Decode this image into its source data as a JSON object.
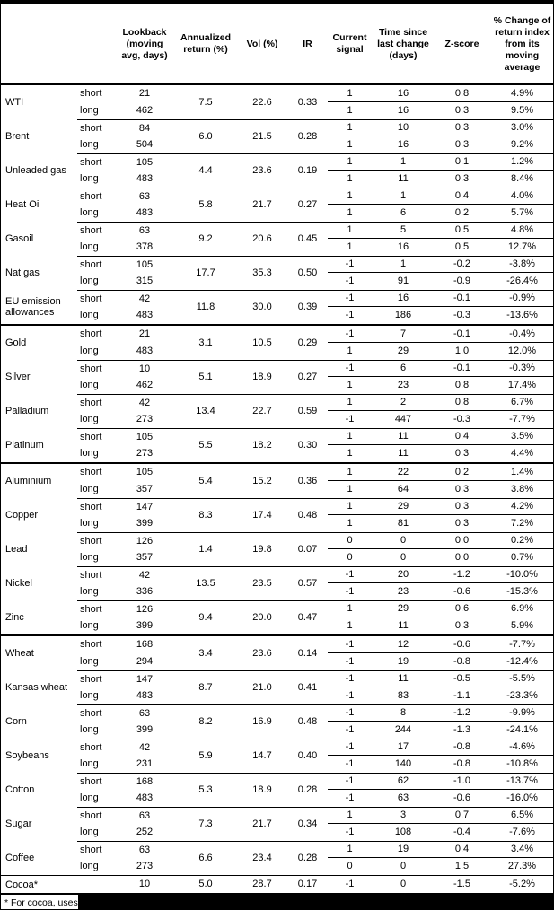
{
  "colors": {
    "background": "#ffffff",
    "line": "#000000",
    "redaction": "#000000"
  },
  "header": {
    "columns": [
      {
        "key": "lookback",
        "label": "Lookback\n(moving\navg, days)"
      },
      {
        "key": "annualized_return",
        "label": "Annualized\nreturn (%)"
      },
      {
        "key": "vol",
        "label": "Vol (%)"
      },
      {
        "key": "ir",
        "label": "IR"
      },
      {
        "key": "current_signal",
        "label": "Current\nsignal"
      },
      {
        "key": "time_since_change",
        "label": "Time since\nlast change\n(days)"
      },
      {
        "key": "zscore",
        "label": "Z-score"
      },
      {
        "key": "pct_change",
        "label": "% Change of\nreturn index\nfrom its\nmoving\naverage"
      }
    ]
  },
  "table": {
    "groups": [
      {
        "name": "WTI",
        "annualized_return": "7.5",
        "vol": "22.6",
        "ir": "0.33",
        "rows": [
          {
            "label": "short",
            "lookback": "21",
            "signal": "1",
            "time": "16",
            "zscore": "0.8",
            "pct": "4.9%"
          },
          {
            "label": "long",
            "lookback": "462",
            "signal": "1",
            "time": "16",
            "zscore": "0.3",
            "pct": "9.5%"
          }
        ]
      },
      {
        "name": "Brent",
        "annualized_return": "6.0",
        "vol": "21.5",
        "ir": "0.28",
        "rows": [
          {
            "label": "short",
            "lookback": "84",
            "signal": "1",
            "time": "10",
            "zscore": "0.3",
            "pct": "3.0%"
          },
          {
            "label": "long",
            "lookback": "504",
            "signal": "1",
            "time": "16",
            "zscore": "0.3",
            "pct": "9.2%"
          }
        ]
      },
      {
        "name": "Unleaded gas",
        "annualized_return": "4.4",
        "vol": "23.6",
        "ir": "0.19",
        "rows": [
          {
            "label": "short",
            "lookback": "105",
            "signal": "1",
            "time": "1",
            "zscore": "0.1",
            "pct": "1.2%"
          },
          {
            "label": "long",
            "lookback": "483",
            "signal": "1",
            "time": "11",
            "zscore": "0.3",
            "pct": "8.4%"
          }
        ]
      },
      {
        "name": "Heat Oil",
        "annualized_return": "5.8",
        "vol": "21.7",
        "ir": "0.27",
        "rows": [
          {
            "label": "short",
            "lookback": "63",
            "signal": "1",
            "time": "1",
            "zscore": "0.4",
            "pct": "4.0%"
          },
          {
            "label": "long",
            "lookback": "483",
            "signal": "1",
            "time": "6",
            "zscore": "0.2",
            "pct": "5.7%"
          }
        ]
      },
      {
        "name": "Gasoil",
        "annualized_return": "9.2",
        "vol": "20.6",
        "ir": "0.45",
        "rows": [
          {
            "label": "short",
            "lookback": "63",
            "signal": "1",
            "time": "5",
            "zscore": "0.5",
            "pct": "4.8%"
          },
          {
            "label": "long",
            "lookback": "378",
            "signal": "1",
            "time": "16",
            "zscore": "0.5",
            "pct": "12.7%"
          }
        ]
      },
      {
        "name": "Nat gas",
        "annualized_return": "17.7",
        "vol": "35.3",
        "ir": "0.50",
        "rows": [
          {
            "label": "short",
            "lookback": "105",
            "signal": "-1",
            "time": "1",
            "zscore": "-0.2",
            "pct": "-3.8%"
          },
          {
            "label": "long",
            "lookback": "315",
            "signal": "-1",
            "time": "91",
            "zscore": "-0.9",
            "pct": "-26.4%"
          }
        ]
      },
      {
        "name": "EU emission allowances",
        "annualized_return": "11.8",
        "vol": "30.0",
        "ir": "0.39",
        "rows": [
          {
            "label": "short",
            "lookback": "42",
            "signal": "-1",
            "time": "16",
            "zscore": "-0.1",
            "pct": "-0.9%"
          },
          {
            "label": "long",
            "lookback": "483",
            "signal": "-1",
            "time": "186",
            "zscore": "-0.3",
            "pct": "-13.6%"
          }
        ]
      },
      {
        "name": "Gold",
        "section_start": true,
        "annualized_return": "3.1",
        "vol": "10.5",
        "ir": "0.29",
        "rows": [
          {
            "label": "short",
            "lookback": "21",
            "signal": "-1",
            "time": "7",
            "zscore": "-0.1",
            "pct": "-0.4%"
          },
          {
            "label": "long",
            "lookback": "483",
            "signal": "1",
            "time": "29",
            "zscore": "1.0",
            "pct": "12.0%"
          }
        ]
      },
      {
        "name": "Silver",
        "annualized_return": "5.1",
        "vol": "18.9",
        "ir": "0.27",
        "rows": [
          {
            "label": "short",
            "lookback": "10",
            "signal": "-1",
            "time": "6",
            "zscore": "-0.1",
            "pct": "-0.3%"
          },
          {
            "label": "long",
            "lookback": "462",
            "signal": "1",
            "time": "23",
            "zscore": "0.8",
            "pct": "17.4%"
          }
        ]
      },
      {
        "name": "Palladium",
        "annualized_return": "13.4",
        "vol": "22.7",
        "ir": "0.59",
        "rows": [
          {
            "label": "short",
            "lookback": "42",
            "signal": "1",
            "time": "2",
            "zscore": "0.8",
            "pct": "6.7%"
          },
          {
            "label": "long",
            "lookback": "273",
            "signal": "-1",
            "time": "447",
            "zscore": "-0.3",
            "pct": "-7.7%"
          }
        ]
      },
      {
        "name": "Platinum",
        "annualized_return": "5.5",
        "vol": "18.2",
        "ir": "0.30",
        "rows": [
          {
            "label": "short",
            "lookback": "105",
            "signal": "1",
            "time": "11",
            "zscore": "0.4",
            "pct": "3.5%"
          },
          {
            "label": "long",
            "lookback": "273",
            "signal": "1",
            "time": "11",
            "zscore": "0.3",
            "pct": "4.4%"
          }
        ]
      },
      {
        "name": "Aluminium",
        "section_start": true,
        "annualized_return": "5.4",
        "vol": "15.2",
        "ir": "0.36",
        "rows": [
          {
            "label": "short",
            "lookback": "105",
            "signal": "1",
            "time": "22",
            "zscore": "0.2",
            "pct": "1.4%"
          },
          {
            "label": "long",
            "lookback": "357",
            "signal": "1",
            "time": "64",
            "zscore": "0.3",
            "pct": "3.8%"
          }
        ]
      },
      {
        "name": "Copper",
        "annualized_return": "8.3",
        "vol": "17.4",
        "ir": "0.48",
        "rows": [
          {
            "label": "short",
            "lookback": "147",
            "signal": "1",
            "time": "29",
            "zscore": "0.3",
            "pct": "4.2%"
          },
          {
            "label": "long",
            "lookback": "399",
            "signal": "1",
            "time": "81",
            "zscore": "0.3",
            "pct": "7.2%"
          }
        ]
      },
      {
        "name": "Lead",
        "annualized_return": "1.4",
        "vol": "19.8",
        "ir": "0.07",
        "rows": [
          {
            "label": "short",
            "lookback": "126",
            "signal": "0",
            "time": "0",
            "zscore": "0.0",
            "pct": "0.2%"
          },
          {
            "label": "long",
            "lookback": "357",
            "signal": "0",
            "time": "0",
            "zscore": "0.0",
            "pct": "0.7%"
          }
        ]
      },
      {
        "name": "Nickel",
        "annualized_return": "13.5",
        "vol": "23.5",
        "ir": "0.57",
        "rows": [
          {
            "label": "short",
            "lookback": "42",
            "signal": "-1",
            "time": "20",
            "zscore": "-1.2",
            "pct": "-10.0%"
          },
          {
            "label": "long",
            "lookback": "336",
            "signal": "-1",
            "time": "23",
            "zscore": "-0.6",
            "pct": "-15.3%"
          }
        ]
      },
      {
        "name": "Zinc",
        "annualized_return": "9.4",
        "vol": "20.0",
        "ir": "0.47",
        "rows": [
          {
            "label": "short",
            "lookback": "126",
            "signal": "1",
            "time": "29",
            "zscore": "0.6",
            "pct": "6.9%"
          },
          {
            "label": "long",
            "lookback": "399",
            "signal": "1",
            "time": "11",
            "zscore": "0.3",
            "pct": "5.9%"
          }
        ]
      },
      {
        "name": "Wheat",
        "section_start": true,
        "annualized_return": "3.4",
        "vol": "23.6",
        "ir": "0.14",
        "rows": [
          {
            "label": "short",
            "lookback": "168",
            "signal": "-1",
            "time": "12",
            "zscore": "-0.6",
            "pct": "-7.7%"
          },
          {
            "label": "long",
            "lookback": "294",
            "signal": "-1",
            "time": "19",
            "zscore": "-0.8",
            "pct": "-12.4%"
          }
        ]
      },
      {
        "name": "Kansas wheat",
        "annualized_return": "8.7",
        "vol": "21.0",
        "ir": "0.41",
        "rows": [
          {
            "label": "short",
            "lookback": "147",
            "signal": "-1",
            "time": "11",
            "zscore": "-0.5",
            "pct": "-5.5%"
          },
          {
            "label": "long",
            "lookback": "483",
            "signal": "-1",
            "time": "83",
            "zscore": "-1.1",
            "pct": "-23.3%"
          }
        ]
      },
      {
        "name": "Corn",
        "annualized_return": "8.2",
        "vol": "16.9",
        "ir": "0.48",
        "rows": [
          {
            "label": "short",
            "lookback": "63",
            "signal": "-1",
            "time": "8",
            "zscore": "-1.2",
            "pct": "-9.9%"
          },
          {
            "label": "long",
            "lookback": "399",
            "signal": "-1",
            "time": "244",
            "zscore": "-1.3",
            "pct": "-24.1%"
          }
        ]
      },
      {
        "name": "Soybeans",
        "annualized_return": "5.9",
        "vol": "14.7",
        "ir": "0.40",
        "rows": [
          {
            "label": "short",
            "lookback": "42",
            "signal": "-1",
            "time": "17",
            "zscore": "-0.8",
            "pct": "-4.6%"
          },
          {
            "label": "long",
            "lookback": "231",
            "signal": "-1",
            "time": "140",
            "zscore": "-0.8",
            "pct": "-10.8%"
          }
        ]
      },
      {
        "name": "Cotton",
        "annualized_return": "5.3",
        "vol": "18.9",
        "ir": "0.28",
        "rows": [
          {
            "label": "short",
            "lookback": "168",
            "signal": "-1",
            "time": "62",
            "zscore": "-1.0",
            "pct": "-13.7%"
          },
          {
            "label": "long",
            "lookback": "483",
            "signal": "-1",
            "time": "63",
            "zscore": "-0.6",
            "pct": "-16.0%"
          }
        ]
      },
      {
        "name": "Sugar",
        "annualized_return": "7.3",
        "vol": "21.7",
        "ir": "0.34",
        "rows": [
          {
            "label": "short",
            "lookback": "63",
            "signal": "1",
            "time": "3",
            "zscore": "0.7",
            "pct": "6.5%"
          },
          {
            "label": "long",
            "lookback": "252",
            "signal": "-1",
            "time": "108",
            "zscore": "-0.4",
            "pct": "-7.6%"
          }
        ]
      },
      {
        "name": "Coffee",
        "annualized_return": "6.6",
        "vol": "23.4",
        "ir": "0.28",
        "rows": [
          {
            "label": "short",
            "lookback": "63",
            "signal": "1",
            "time": "19",
            "zscore": "0.4",
            "pct": "3.4%"
          },
          {
            "label": "long",
            "lookback": "273",
            "signal": "0",
            "time": "0",
            "zscore": "1.5",
            "pct": "27.3%"
          }
        ]
      },
      {
        "name": "Cocoa*",
        "full_top": true,
        "annualized_return": "5.0",
        "vol": "28.7",
        "ir": "0.17",
        "rows": [
          {
            "label": "",
            "lookback": "10",
            "signal": "-1",
            "time": "0",
            "zscore": "-1.5",
            "pct": "-5.2%"
          }
        ]
      }
    ]
  },
  "footnote": {
    "text": "* For cocoa, uses c",
    "redacted": true
  }
}
